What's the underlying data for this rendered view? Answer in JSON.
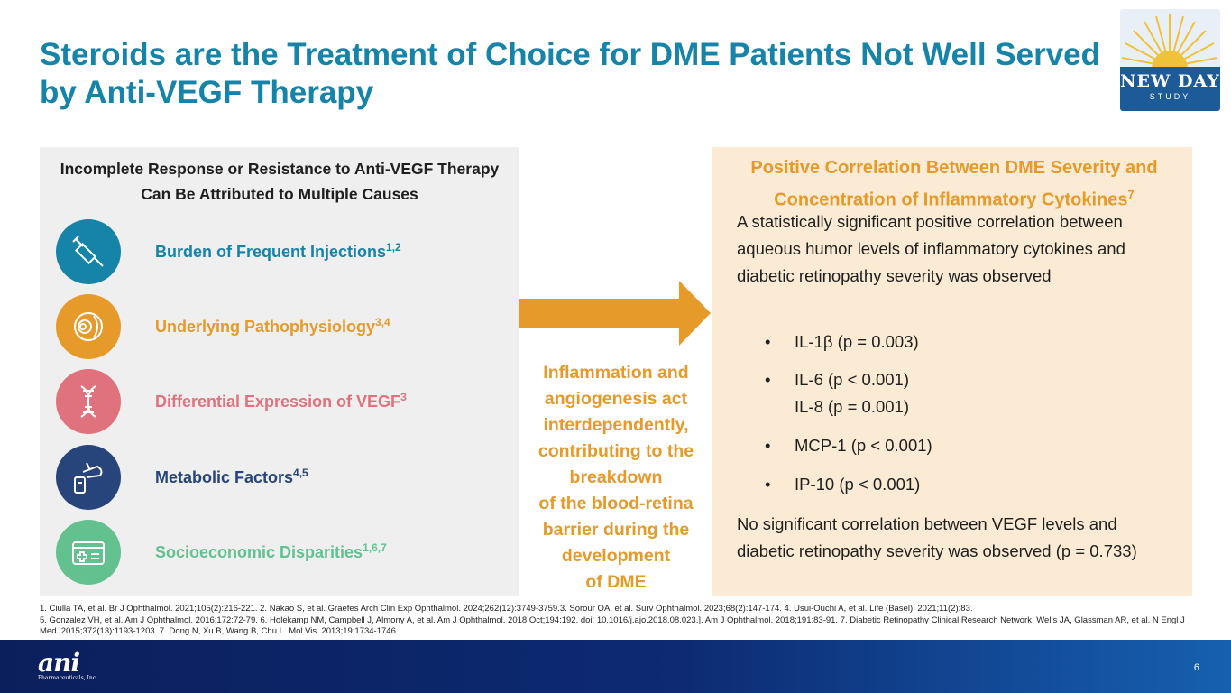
{
  "title": "Steroids are the Treatment of Choice for DME Patients Not Well Served by Anti-VEGF Therapy",
  "logo": {
    "name": "NEW DAY",
    "sub": "STUDY"
  },
  "left_panel": {
    "heading": "Incomplete Response or Resistance to Anti-VEGF Therapy Can Be Attributed to Multiple Causes",
    "causes": [
      {
        "label": "Burden of Frequent Injections",
        "sup": "1,2",
        "color": "#1683a8",
        "icon": "syringe-icon"
      },
      {
        "label": "Underlying Pathophysiology",
        "sup": "3,4",
        "color": "#e59a2a",
        "icon": "eye-icon"
      },
      {
        "label": "Differential Expression of VEGF",
        "sup": "3",
        "color": "#e0727e",
        "icon": "dna-icon"
      },
      {
        "label": "Metabolic Factors",
        "sup": "4,5",
        "color": "#27457a",
        "icon": "glucose-meter-icon"
      },
      {
        "label": "Socioeconomic Disparities",
        "sup": "1,6,7",
        "color": "#62c18f",
        "icon": "health-card-icon"
      }
    ]
  },
  "middle": {
    "text_lines": [
      "Inflammation and",
      "angiogenesis act",
      "interdependently,",
      "contributing to the",
      "breakdown",
      "of the blood-retina",
      "barrier during the",
      "development",
      "of DME"
    ]
  },
  "right_panel": {
    "heading": "Positive Correlation Between DME Severity and Concentration of Inflammatory Cytokines",
    "heading_sup": "7",
    "intro": "A statistically significant positive correlation between aqueous humor levels of inflammatory cytokines and diabetic retinopathy severity was observed",
    "bullets": [
      {
        "line1": "IL-1β (p = 0.003)",
        "line2": ""
      },
      {
        "line1": "IL-6 (p < 0.001)",
        "line2": "IL-8 (p = 0.001)"
      },
      {
        "line1": "MCP-1 (p < 0.001)",
        "line2": ""
      },
      {
        "line1": "IP-10 (p < 0.001)",
        "line2": ""
      }
    ],
    "closing": "No significant correlation between VEGF levels and diabetic retinopathy severity was observed (p = 0.733)"
  },
  "references": [
    "1. Ciulla TA, et al. Br J Ophthalmol. 2021;105(2):216-221. 2. Nakao S, et al. Graefes Arch Clin Exp Ophthalmol. 2024;262(12):3749-3759.3. Sorour OA, et al. Surv Ophthalmol. 2023;68(2):147-174. 4. Usui-Ouchi A, et al. Life (Basel). 2021;11(2):83.",
    "5. Gonzalez VH, et al. Am J Ophthalmol. 2016;172:72-79. 6. Holekamp NM, Campbell J, Almony A, et al. Am J Ophthalmol. 2018 Oct;194:192. doi: 10.1016/j.ajo.2018.08.023.]. Am J Ophthalmol. 2018;191:83-91. 7. Diabetic Retinopathy Clinical Research Network, Wells JA, Glassman AR, et al. N Engl J Med. 2015;372(13):1193-1203. 7. Dong N, Xu B, Wang B, Chu L. Mol Vis. 2013;19:1734-1746."
  ],
  "footer": {
    "company": "ani",
    "company_sub": "Pharmaceuticals, Inc.",
    "page": "6"
  }
}
